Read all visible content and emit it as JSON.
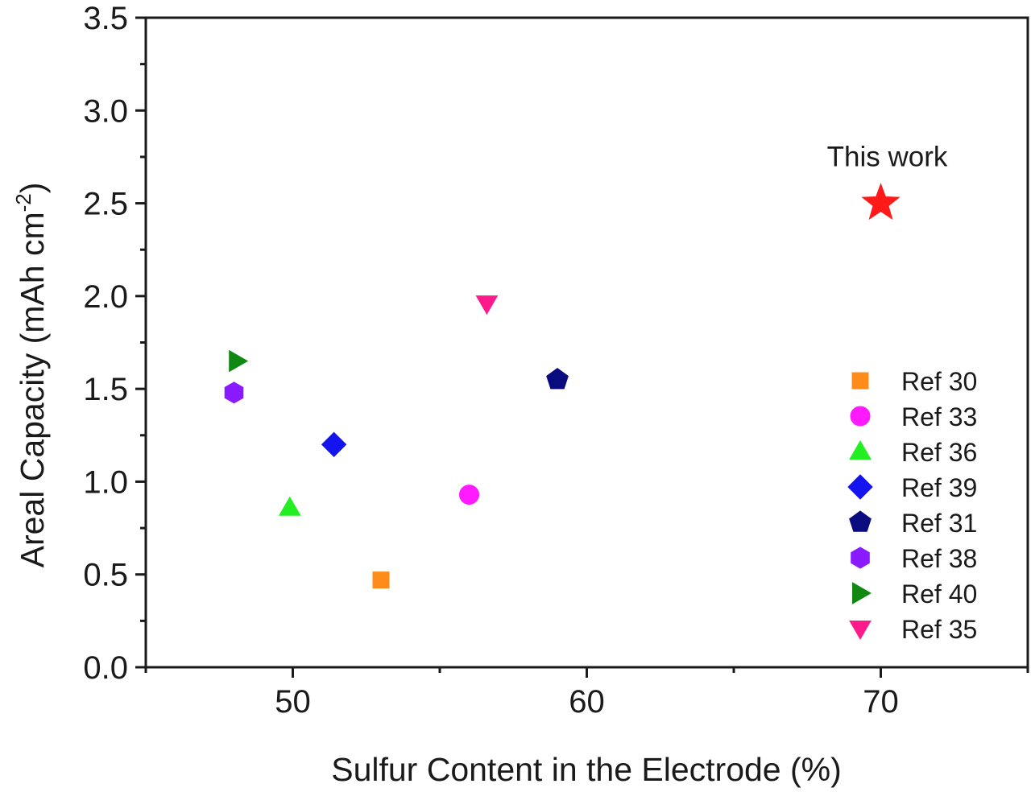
{
  "chart_data": {
    "type": "scatter",
    "xlabel": "Sulfur Content in the Electrode (%)",
    "ylabel_main": "Areal Capacity (mAh cm",
    "ylabel_sup": "-2",
    "ylabel_close": ")",
    "xlim": [
      45,
      75
    ],
    "ylim": [
      0,
      3.5
    ],
    "xticks": [
      50,
      60,
      70
    ],
    "xtick_labels": [
      "50",
      "60",
      "70"
    ],
    "xminor": [
      45,
      55,
      65,
      75
    ],
    "yticks": [
      0,
      0.5,
      1.0,
      1.5,
      2.0,
      2.5,
      3.0,
      3.5
    ],
    "ytick_labels": [
      "0.0",
      "0.5",
      "1.0",
      "1.5",
      "2.0",
      "2.5",
      "3.0",
      "3.5"
    ],
    "grid": false,
    "legend_position": "bottom-right",
    "series": [
      {
        "name": "Ref 30",
        "marker": "square",
        "color": "#ff8c1a",
        "x": 53.0,
        "y": 0.47
      },
      {
        "name": "Ref 33",
        "marker": "circle",
        "color": "#ff1aff",
        "x": 56.0,
        "y": 0.93
      },
      {
        "name": "Ref 36",
        "marker": "triangle-up",
        "color": "#22ee22",
        "x": 49.9,
        "y": 0.86
      },
      {
        "name": "Ref 39",
        "marker": "diamond",
        "color": "#1414ee",
        "x": 51.4,
        "y": 1.2
      },
      {
        "name": "Ref 31",
        "marker": "pentagon",
        "color": "#0b0b80",
        "x": 59.0,
        "y": 1.55
      },
      {
        "name": "Ref 38",
        "marker": "hexagon",
        "color": "#8a1aff",
        "x": 48.0,
        "y": 1.48
      },
      {
        "name": "Ref 40",
        "marker": "triangle-right",
        "color": "#118811",
        "x": 48.1,
        "y": 1.65
      },
      {
        "name": "Ref 35",
        "marker": "triangle-down",
        "color": "#ff1a8c",
        "x": 56.6,
        "y": 1.96
      }
    ],
    "highlight": {
      "label": "This work",
      "marker": "star",
      "color": "#ff1a1a",
      "x": 70.0,
      "y": 2.5
    }
  }
}
